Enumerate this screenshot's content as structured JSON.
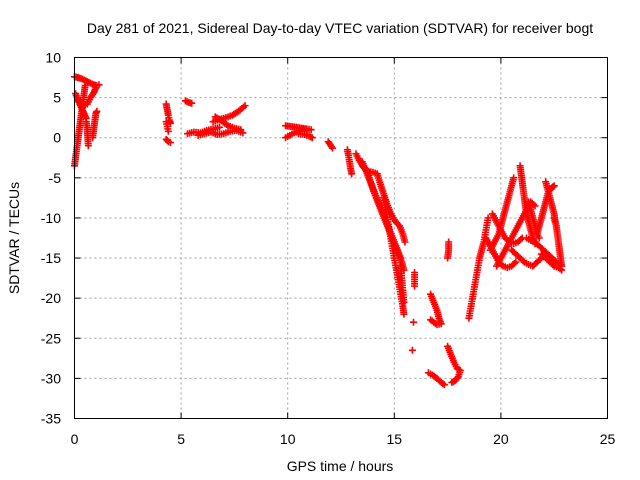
{
  "chart_data": {
    "type": "scatter",
    "title": "Day 281 of 2021, Sidereal Day-to-day VTEC variation (SDTVAR) for receiver bogt",
    "xlabel": "GPS time / hours",
    "ylabel": "SDTVAR / TECUs",
    "xlim": [
      0,
      25
    ],
    "ylim": [
      -35,
      10
    ],
    "xticks": [
      0,
      5,
      10,
      15,
      20,
      25
    ],
    "yticks": [
      -35,
      -30,
      -25,
      -20,
      -15,
      -10,
      -5,
      0,
      5,
      10
    ],
    "xtick_labels": [
      "0",
      "5",
      "10",
      "15",
      "20",
      "25"
    ],
    "ytick_labels": [
      "-35",
      "-30",
      "-25",
      "-20",
      "-15",
      "-10",
      "-5",
      "0",
      "5",
      "10"
    ],
    "grid": true,
    "marker": "+",
    "color": "#ff0000",
    "segments": [
      [
        [
          0.0,
          -3.5
        ],
        [
          0.05,
          -2.5
        ],
        [
          0.1,
          -1.5
        ],
        [
          0.15,
          -0.5
        ],
        [
          0.2,
          0.5
        ],
        [
          0.25,
          1.5
        ],
        [
          0.3,
          2.5
        ],
        [
          0.35,
          3.5
        ],
        [
          0.4,
          4.5
        ],
        [
          0.45,
          5.5
        ],
        [
          0.5,
          6.5
        ]
      ],
      [
        [
          0.0,
          7.6
        ],
        [
          0.15,
          7.5
        ],
        [
          0.3,
          7.4
        ],
        [
          0.45,
          7.2
        ],
        [
          0.6,
          7.0
        ],
        [
          0.75,
          6.8
        ],
        [
          0.9,
          6.6
        ],
        [
          1.05,
          6.5
        ],
        [
          1.15,
          6.6
        ]
      ],
      [
        [
          0.05,
          5.5
        ],
        [
          0.15,
          4.8
        ],
        [
          0.25,
          4.2
        ],
        [
          0.35,
          3.6
        ],
        [
          0.45,
          3.0
        ],
        [
          0.55,
          2.4
        ]
      ],
      [
        [
          0.2,
          4.5
        ],
        [
          0.4,
          4.0
        ],
        [
          0.6,
          4.2
        ],
        [
          0.75,
          5.0
        ],
        [
          0.9,
          5.6
        ],
        [
          1.0,
          6.2
        ]
      ],
      [
        [
          0.55,
          2.0
        ],
        [
          0.6,
          1.0
        ],
        [
          0.62,
          0.0
        ],
        [
          0.65,
          -1.0
        ]
      ],
      [
        [
          0.85,
          0.0
        ],
        [
          0.9,
          1.0
        ],
        [
          0.95,
          2.0
        ],
        [
          1.0,
          3.0
        ],
        [
          1.05,
          3.3
        ]
      ],
      [
        [
          4.3,
          4.2
        ],
        [
          4.35,
          3.5
        ],
        [
          4.4,
          2.8
        ],
        [
          4.45,
          2.2
        ],
        [
          4.5,
          1.8
        ]
      ],
      [
        [
          4.3,
          2.0
        ],
        [
          4.35,
          1.4
        ],
        [
          4.4,
          0.8
        ]
      ],
      [
        [
          4.3,
          -0.2
        ],
        [
          4.4,
          -0.5
        ],
        [
          4.5,
          -0.6
        ]
      ],
      [
        [
          5.2,
          4.6
        ],
        [
          5.35,
          4.4
        ],
        [
          5.5,
          4.3
        ]
      ],
      [
        [
          5.3,
          0.5
        ],
        [
          5.6,
          0.7
        ],
        [
          5.9,
          0.6
        ],
        [
          6.2,
          0.9
        ],
        [
          6.5,
          1.1
        ],
        [
          6.8,
          1.3
        ]
      ],
      [
        [
          5.8,
          0.3
        ],
        [
          6.1,
          0.5
        ],
        [
          6.4,
          0.7
        ],
        [
          6.7,
          0.4
        ],
        [
          7.0,
          0.5
        ],
        [
          7.3,
          0.8
        ],
        [
          7.6,
          0.9
        ],
        [
          7.9,
          0.6
        ]
      ],
      [
        [
          6.5,
          2.0
        ],
        [
          6.8,
          2.3
        ],
        [
          7.1,
          2.5
        ],
        [
          7.4,
          2.8
        ],
        [
          7.7,
          3.3
        ],
        [
          8.0,
          4.0
        ]
      ],
      [
        [
          6.6,
          2.6
        ],
        [
          6.9,
          2.1
        ],
        [
          7.2,
          1.5
        ],
        [
          7.5,
          1.2
        ],
        [
          7.8,
          1.0
        ]
      ],
      [
        [
          9.9,
          1.5
        ],
        [
          10.15,
          1.4
        ],
        [
          10.4,
          1.3
        ],
        [
          10.65,
          1.2
        ],
        [
          10.9,
          1.1
        ],
        [
          11.1,
          1.0
        ]
      ],
      [
        [
          9.9,
          0.0
        ],
        [
          10.1,
          0.3
        ],
        [
          10.3,
          0.6
        ],
        [
          10.5,
          0.8
        ],
        [
          10.7,
          1.0
        ],
        [
          10.9,
          0.9
        ]
      ],
      [
        [
          10.5,
          0.5
        ],
        [
          10.8,
          0.4
        ],
        [
          11.0,
          0.2
        ],
        [
          11.15,
          0.0
        ]
      ],
      [
        [
          11.9,
          -0.5
        ],
        [
          12.0,
          -0.9
        ],
        [
          12.1,
          -1.3
        ]
      ],
      [
        [
          12.8,
          -1.5
        ],
        [
          12.85,
          -2.2
        ],
        [
          12.9,
          -3.0
        ],
        [
          12.95,
          -3.8
        ],
        [
          13.0,
          -4.5
        ]
      ],
      [
        [
          13.2,
          -2.0
        ],
        [
          13.35,
          -2.8
        ],
        [
          13.5,
          -3.5
        ],
        [
          13.65,
          -4.0
        ],
        [
          13.8,
          -4.2
        ],
        [
          14.0,
          -4.3
        ],
        [
          14.2,
          -4.5
        ]
      ],
      [
        [
          13.5,
          -3.0
        ],
        [
          13.65,
          -4.0
        ],
        [
          13.8,
          -5.0
        ],
        [
          13.95,
          -6.0
        ],
        [
          14.1,
          -7.0
        ],
        [
          14.25,
          -8.0
        ],
        [
          14.4,
          -9.0
        ],
        [
          14.55,
          -10.0
        ],
        [
          14.7,
          -11.0
        ],
        [
          14.85,
          -12.0
        ],
        [
          15.0,
          -13.0
        ],
        [
          15.15,
          -14.0
        ],
        [
          15.3,
          -15.0
        ]
      ],
      [
        [
          13.7,
          -4.0
        ],
        [
          13.85,
          -5.2
        ],
        [
          14.0,
          -6.4
        ],
        [
          14.15,
          -7.5
        ],
        [
          14.3,
          -8.5
        ],
        [
          14.45,
          -9.5
        ],
        [
          14.6,
          -10.5
        ],
        [
          14.75,
          -11.5
        ],
        [
          14.9,
          -12.5
        ],
        [
          15.05,
          -13.5
        ],
        [
          15.2,
          -14.5
        ],
        [
          15.35,
          -15.5
        ],
        [
          15.45,
          -16.5
        ]
      ],
      [
        [
          14.2,
          -4.5
        ],
        [
          14.35,
          -5.8
        ],
        [
          14.5,
          -7.0
        ],
        [
          14.65,
          -8.2
        ],
        [
          14.8,
          -9.2
        ],
        [
          14.95,
          -10.0
        ],
        [
          15.1,
          -10.6
        ],
        [
          15.25,
          -11.0
        ],
        [
          15.4,
          -12.0
        ],
        [
          15.5,
          -13.0
        ]
      ],
      [
        [
          14.5,
          -7.5
        ],
        [
          14.6,
          -9.0
        ],
        [
          14.7,
          -10.5
        ],
        [
          14.8,
          -12.0
        ],
        [
          14.9,
          -13.5
        ],
        [
          15.0,
          -15.0
        ],
        [
          15.1,
          -16.5
        ],
        [
          15.2,
          -18.0
        ],
        [
          15.3,
          -19.5
        ],
        [
          15.4,
          -21.0
        ],
        [
          15.45,
          -22.0
        ]
      ],
      [
        [
          15.3,
          -16.0
        ],
        [
          15.35,
          -17.5
        ],
        [
          15.4,
          -19.0
        ],
        [
          15.45,
          -20.5
        ]
      ],
      [
        [
          15.95,
          -16.8
        ],
        [
          15.95,
          -18.5
        ]
      ],
      [
        [
          15.9,
          -23.0
        ]
      ],
      [
        [
          15.85,
          -26.5
        ]
      ],
      [
        [
          16.7,
          -19.5
        ],
        [
          16.85,
          -20.5
        ],
        [
          17.0,
          -21.5
        ],
        [
          17.1,
          -22.5
        ],
        [
          17.2,
          -23.2
        ],
        [
          17.0,
          -23.3
        ],
        [
          16.85,
          -23.0
        ],
        [
          16.7,
          -22.7
        ]
      ],
      [
        [
          16.6,
          -29.3
        ],
        [
          16.8,
          -29.6
        ],
        [
          17.0,
          -30.0
        ],
        [
          17.2,
          -30.5
        ],
        [
          17.35,
          -30.8
        ]
      ],
      [
        [
          17.55,
          -13.0
        ],
        [
          17.55,
          -14.0
        ],
        [
          17.5,
          -15.0
        ]
      ],
      [
        [
          17.5,
          -26.0
        ],
        [
          17.65,
          -27.0
        ],
        [
          17.8,
          -28.0
        ],
        [
          17.95,
          -28.8
        ],
        [
          18.1,
          -29.0
        ],
        [
          18.0,
          -29.8
        ],
        [
          17.85,
          -30.3
        ],
        [
          17.7,
          -30.5
        ]
      ],
      [
        [
          18.5,
          -22.5
        ],
        [
          18.6,
          -21.0
        ],
        [
          18.7,
          -19.5
        ],
        [
          18.8,
          -18.0
        ],
        [
          18.9,
          -16.5
        ],
        [
          19.0,
          -15.0
        ],
        [
          19.1,
          -14.0
        ],
        [
          19.2,
          -13.0
        ],
        [
          19.3,
          -11.5
        ],
        [
          19.4,
          -10.0
        ]
      ],
      [
        [
          19.3,
          -12.5
        ],
        [
          19.5,
          -13.5
        ],
        [
          19.7,
          -14.5
        ],
        [
          19.9,
          -15.5
        ],
        [
          20.1,
          -16.0
        ],
        [
          20.3,
          -16.2
        ],
        [
          20.5,
          -16.0
        ],
        [
          20.7,
          -15.5
        ]
      ],
      [
        [
          19.5,
          -14.0
        ],
        [
          19.7,
          -13.0
        ],
        [
          19.9,
          -12.0
        ],
        [
          20.0,
          -11.0
        ],
        [
          20.1,
          -10.0
        ],
        [
          20.2,
          -9.0
        ],
        [
          20.3,
          -8.0
        ],
        [
          20.4,
          -7.0
        ],
        [
          20.5,
          -6.0
        ],
        [
          20.6,
          -5.0
        ]
      ],
      [
        [
          19.6,
          -9.5
        ],
        [
          19.8,
          -10.5
        ],
        [
          20.0,
          -11.5
        ],
        [
          20.2,
          -12.5
        ],
        [
          20.4,
          -13.0
        ],
        [
          20.6,
          -13.2
        ],
        [
          20.8,
          -13.0
        ],
        [
          21.0,
          -12.5
        ]
      ],
      [
        [
          19.8,
          -16.0
        ],
        [
          20.0,
          -15.0
        ],
        [
          20.2,
          -14.0
        ],
        [
          20.4,
          -13.0
        ],
        [
          20.6,
          -12.0
        ],
        [
          20.8,
          -11.0
        ],
        [
          21.0,
          -10.0
        ],
        [
          21.2,
          -9.0
        ],
        [
          21.4,
          -8.0
        ],
        [
          21.6,
          -8.5
        ]
      ],
      [
        [
          20.9,
          -3.5
        ],
        [
          20.95,
          -4.5
        ],
        [
          21.0,
          -5.5
        ],
        [
          21.05,
          -6.5
        ],
        [
          21.1,
          -7.5
        ],
        [
          21.15,
          -8.5
        ],
        [
          21.2,
          -9.5
        ],
        [
          21.3,
          -10.5
        ],
        [
          21.4,
          -11.5
        ],
        [
          21.5,
          -12.5
        ],
        [
          21.6,
          -13.2
        ]
      ],
      [
        [
          20.5,
          -14.0
        ],
        [
          20.7,
          -14.5
        ],
        [
          20.9,
          -15.0
        ],
        [
          21.1,
          -15.5
        ],
        [
          21.3,
          -15.8
        ],
        [
          21.5,
          -16.0
        ],
        [
          21.7,
          -15.5
        ],
        [
          21.9,
          -15.0
        ]
      ],
      [
        [
          21.2,
          -12.5
        ],
        [
          21.4,
          -12.8
        ],
        [
          21.6,
          -13.0
        ],
        [
          21.8,
          -13.5
        ],
        [
          22.0,
          -14.0
        ],
        [
          22.2,
          -14.5
        ],
        [
          22.4,
          -15.0
        ],
        [
          22.6,
          -15.5
        ],
        [
          22.8,
          -15.8
        ]
      ],
      [
        [
          21.3,
          -8.0
        ],
        [
          21.4,
          -9.0
        ],
        [
          21.5,
          -10.0
        ],
        [
          21.6,
          -11.0
        ],
        [
          21.7,
          -12.0
        ],
        [
          21.8,
          -12.5
        ]
      ],
      [
        [
          21.7,
          -12.0
        ],
        [
          21.8,
          -11.0
        ],
        [
          21.9,
          -10.0
        ],
        [
          22.0,
          -9.0
        ],
        [
          22.1,
          -8.0
        ],
        [
          22.2,
          -7.0
        ],
        [
          22.3,
          -6.5
        ],
        [
          22.4,
          -6.2
        ],
        [
          22.5,
          -6.0
        ]
      ],
      [
        [
          22.1,
          -5.5
        ],
        [
          22.2,
          -6.5
        ],
        [
          22.3,
          -7.5
        ],
        [
          22.4,
          -8.5
        ],
        [
          22.5,
          -9.5
        ],
        [
          22.55,
          -10.5
        ]
      ],
      [
        [
          21.9,
          -14.5
        ],
        [
          22.1,
          -15.0
        ],
        [
          22.3,
          -15.5
        ],
        [
          22.5,
          -16.0
        ],
        [
          22.7,
          -16.2
        ],
        [
          22.85,
          -16.5
        ]
      ],
      [
        [
          22.5,
          -10.0
        ],
        [
          22.6,
          -11.0
        ],
        [
          22.65,
          -12.0
        ],
        [
          22.7,
          -13.0
        ],
        [
          22.75,
          -14.0
        ],
        [
          22.8,
          -15.0
        ],
        [
          22.85,
          -16.0
        ]
      ]
    ]
  }
}
